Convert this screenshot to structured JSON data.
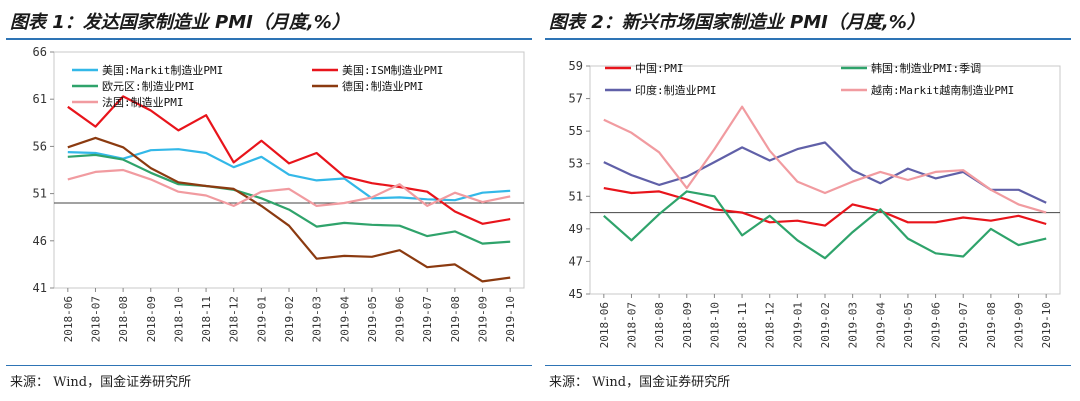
{
  "page": {
    "left_title": "图表 1：发达国家制造业 PMI（月度,%）",
    "right_title": "图表 2：新兴市场国家制造业 PMI（月度,%）",
    "left_source": "来源： Wind，国金证券研究所",
    "right_source": "来源： Wind，国金证券研究所"
  },
  "chart_data": [
    {
      "type": "line",
      "title": "图表 1：发达国家制造业 PMI（月度,%）",
      "x": [
        "2018-06",
        "2018-07",
        "2018-08",
        "2018-09",
        "2018-10",
        "2018-11",
        "2018-12",
        "2019-01",
        "2019-02",
        "2019-03",
        "2019-04",
        "2019-05",
        "2019-06",
        "2019-07",
        "2019-08",
        "2019-09",
        "2019-10"
      ],
      "ylim": [
        41,
        66
      ],
      "yticks": [
        41,
        46,
        51,
        56,
        61,
        66
      ],
      "reference_line": 50,
      "legend_placement": "top",
      "series": [
        {
          "name": "美国:Markit制造业PMI",
          "color": "#33b8e8",
          "values": [
            55.4,
            55.3,
            54.7,
            55.6,
            55.7,
            55.3,
            53.8,
            54.9,
            53.0,
            52.4,
            52.6,
            50.5,
            50.6,
            50.4,
            50.3,
            51.1,
            51.3
          ]
        },
        {
          "name": "美国:ISM制造业PMI",
          "color": "#e8141b",
          "values": [
            60.2,
            58.1,
            61.3,
            59.8,
            57.7,
            59.3,
            54.3,
            56.6,
            54.2,
            55.3,
            52.8,
            52.1,
            51.7,
            51.2,
            49.1,
            47.8,
            48.3
          ]
        },
        {
          "name": "欧元区:制造业PMI",
          "color": "#2fa36b",
          "values": [
            54.9,
            55.1,
            54.6,
            53.2,
            52.0,
            51.8,
            51.4,
            50.5,
            49.3,
            47.5,
            47.9,
            47.7,
            47.6,
            46.5,
            47.0,
            45.7,
            45.9
          ]
        },
        {
          "name": "德国:制造业PMI",
          "color": "#8b3a10",
          "values": [
            55.9,
            56.9,
            55.9,
            53.7,
            52.2,
            51.8,
            51.5,
            49.7,
            47.6,
            44.1,
            44.4,
            44.3,
            45.0,
            43.2,
            43.5,
            41.7,
            42.1
          ]
        },
        {
          "name": "法国:制造业PMI",
          "color": "#f19ba0",
          "values": [
            52.5,
            53.3,
            53.5,
            52.5,
            51.2,
            50.8,
            49.7,
            51.2,
            51.5,
            49.7,
            50.0,
            50.6,
            52.0,
            49.7,
            51.1,
            50.1,
            50.7
          ]
        }
      ]
    },
    {
      "type": "line",
      "title": "图表 2：新兴市场国家制造业 PMI（月度,%）",
      "x": [
        "2018-06",
        "2018-07",
        "2018-08",
        "2018-09",
        "2018-10",
        "2018-11",
        "2018-12",
        "2019-01",
        "2019-02",
        "2019-03",
        "2019-04",
        "2019-05",
        "2019-06",
        "2019-07",
        "2019-08",
        "2019-09",
        "2019-10"
      ],
      "ylim": [
        45,
        59
      ],
      "yticks": [
        45,
        47,
        49,
        51,
        53,
        55,
        57,
        59
      ],
      "reference_line": 50,
      "legend_placement": "top",
      "series": [
        {
          "name": "中国:PMI",
          "color": "#e8141b",
          "values": [
            51.5,
            51.2,
            51.3,
            50.8,
            50.2,
            50.0,
            49.4,
            49.5,
            49.2,
            50.5,
            50.1,
            49.4,
            49.4,
            49.7,
            49.5,
            49.8,
            49.3
          ]
        },
        {
          "name": "韩国:制造业PMI:季调",
          "color": "#2fa36b",
          "values": [
            49.8,
            48.3,
            49.9,
            51.3,
            51.0,
            48.6,
            49.8,
            48.3,
            47.2,
            48.8,
            50.2,
            48.4,
            47.5,
            47.3,
            49.0,
            48.0,
            48.4
          ]
        },
        {
          "name": "印度:制造业PMI",
          "color": "#6060a8",
          "values": [
            53.1,
            52.3,
            51.7,
            52.2,
            53.1,
            54.0,
            53.2,
            53.9,
            54.3,
            52.6,
            51.8,
            52.7,
            52.1,
            52.5,
            51.4,
            51.4,
            50.6
          ]
        },
        {
          "name": "越南:Markit越南制造业PMI",
          "color": "#f19ba0",
          "values": [
            55.7,
            54.9,
            53.7,
            51.5,
            53.9,
            56.5,
            53.8,
            51.9,
            51.2,
            51.9,
            52.5,
            52.0,
            52.5,
            52.6,
            51.4,
            50.5,
            50.0
          ]
        }
      ]
    }
  ]
}
